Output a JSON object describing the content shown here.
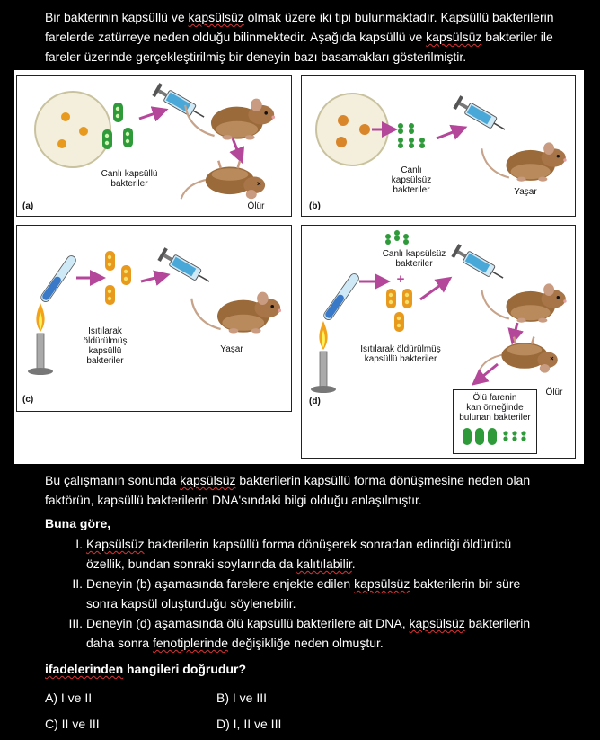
{
  "intro": {
    "line1_a": "Bir bakterinin kapsüllü ve ",
    "line1_u": "kapsülsüz",
    "line1_b": " olmak üzere iki tipi bulunmaktadır. Kapsüllü bakterilerin",
    "line2_a": "farelerde zatürreye neden olduğu bilinmektedir. Aşağıda kapsüllü ve ",
    "line2_u": "kapsülsüz",
    "line2_b": " bakteriler ile",
    "line3": "fareler üzerinde gerçekleştirilmiş bir deneyin bazı basamakları gösterilmiştir."
  },
  "figure": {
    "panel_a": {
      "letter": "(a)",
      "bacteria_label_1": "Canlı kapsüllü",
      "bacteria_label_2": "bakteriler",
      "outcome": "Ölür"
    },
    "panel_b": {
      "letter": "(b)",
      "bacteria_label_1": "Canlı",
      "bacteria_label_2": "kapsülsüz",
      "bacteria_label_3": "bakteriler",
      "outcome": "Yaşar"
    },
    "panel_c": {
      "letter": "(c)",
      "bacteria_label_1": "Isıtılarak",
      "bacteria_label_2": "öldürülmüş",
      "bacteria_label_3": "kapsüllü",
      "bacteria_label_4": "bakteriler",
      "outcome": "Yaşar"
    },
    "panel_d": {
      "letter": "(d)",
      "live_label_1": "Canlı kapsülsüz",
      "live_label_2": "bakteriler",
      "plus": "+",
      "dead_label_1": "Isıtılarak öldürülmüş",
      "dead_label_2": "kapsüllü bakteriler",
      "outcome": "Ölür",
      "box_1": "Ölü farenin",
      "box_2": "kan örneğinde",
      "box_3": "bulunan bakteriler"
    }
  },
  "result": {
    "line1_a": "Bu çalışmanın sonunda ",
    "line1_u": "kapsülsüz",
    "line1_b": " bakterilerin kapsüllü forma dönüşmesine neden olan",
    "line2": "faktörün, kapsüllü bakterilerin DNA'sındaki bilgi olduğu anlaşılmıştır."
  },
  "buna_gore": "Buna göre,",
  "statements": [
    {
      "num": "I.",
      "line1_u": "Kapsülsüz",
      "line1_b": " bakterilerin kapsüllü forma dönüşerek sonradan edindiği öldürücü",
      "line2_a": "özellik, bundan sonraki soylarında da ",
      "line2_u": "kalıtılabilir",
      "line2_b": "."
    },
    {
      "num": "II.",
      "line1_a": "Deneyin (b) aşamasında farelere enjekte edilen ",
      "line1_u": "kapsülsüz",
      "line1_b": " bakterilerin bir süre",
      "line2": "sonra kapsül oluşturduğu söylenebilir."
    },
    {
      "num": "III.",
      "line1_a": "Deneyin (d) aşamasında ölü kapsüllü bakterilere ait DNA, ",
      "line1_u": "kapsülsüz",
      "line1_b": " bakterilerin",
      "line2_a": "daha sonra ",
      "line2_u": "fenotiplerinde",
      "line2_b": " değişikliğe neden olmuştur."
    }
  ],
  "question": {
    "u": "ifadelerinden",
    "rest": " hangileri doğrudur?"
  },
  "options": {
    "A": "A) I ve II",
    "B": "B) I ve III",
    "C": "C) II ve III",
    "D": "D) I, II ve III"
  },
  "colors": {
    "capsule_green": "#2e9a3a",
    "capsule_orange": "#e89a1e",
    "arrow_purple": "#b5479b",
    "mouse_brown": "#9b6a3a",
    "syringe_blue": "#4aa8d8"
  },
  "icons": [
    "petri-dish-icon",
    "syringe-icon",
    "mouse-icon",
    "bunsen-burner-icon",
    "arrow-icon"
  ]
}
